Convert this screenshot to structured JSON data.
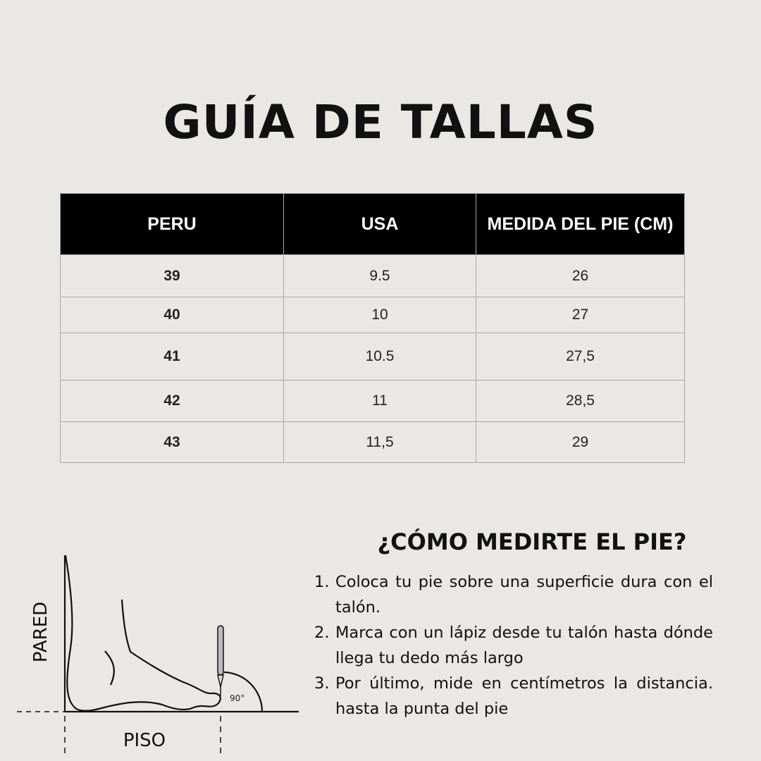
{
  "title": "GUÍA DE TALLAS",
  "table": {
    "headers": [
      "PERU",
      "USA",
      "MEDIDA DEL PIE (CM)"
    ],
    "rows": [
      [
        "39",
        "9.5",
        "26"
      ],
      [
        "40",
        "10",
        "27"
      ],
      [
        "41",
        "10.5",
        "27,5"
      ],
      [
        "42",
        "11",
        "28,5"
      ],
      [
        "43",
        "11,5",
        "29"
      ]
    ]
  },
  "howto": {
    "title": "¿CÓMO MEDIRTE EL PIE?",
    "steps": [
      {
        "n": "1.",
        "text": "Coloca tu pie sobre una superficie dura con el talón."
      },
      {
        "n": "2.",
        "text": "Marca con un lápiz desde tu talón hasta dónde llega tu dedo más largo"
      },
      {
        "n": "3.",
        "text": "Por último, mide en centímetros la distancia. hasta la punta del pie"
      }
    ]
  },
  "diagram": {
    "wall_label": "PARED",
    "floor_label": "PISO",
    "angle_label": "90°"
  }
}
